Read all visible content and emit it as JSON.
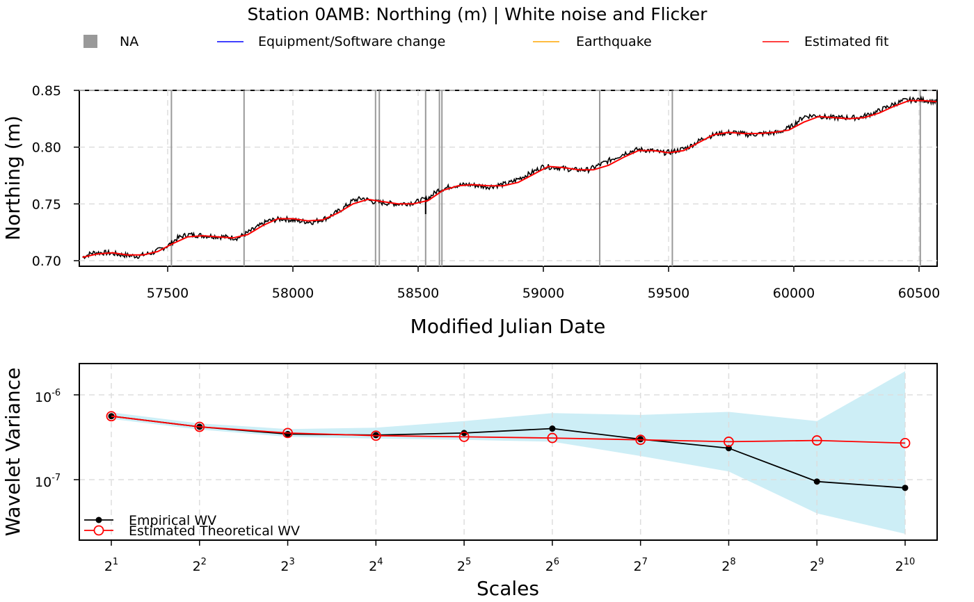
{
  "title": "Station 0AMB: Northing (m) | White noise and Flicker",
  "legend_top": [
    {
      "label": "NA",
      "color": "#999999",
      "symbol": "square"
    },
    {
      "label": "Equipment/Software change",
      "color": "#0000ff",
      "symbol": "line"
    },
    {
      "label": "Earthquake",
      "color": "#ffa500",
      "symbol": "line"
    },
    {
      "label": "Estimated fit",
      "color": "#ff0000",
      "symbol": "line"
    }
  ],
  "chart_data": [
    {
      "type": "line",
      "ylabel": "Northing (m)",
      "xlabel": "Modified Julian Date",
      "xlim": [
        57150,
        60575
      ],
      "ylim": [
        0.695,
        0.85
      ],
      "xticks": [
        57500,
        58000,
        58500,
        59000,
        59500,
        60000,
        60500
      ],
      "yticks": [
        0.7,
        0.75,
        0.8,
        0.85
      ],
      "ytick_labels": [
        "0.70",
        "0.75",
        "0.80",
        "0.85"
      ],
      "na_lines_mjd": [
        57515,
        57805,
        58330,
        58345,
        58530,
        58585,
        58595,
        59225,
        59515,
        60505
      ],
      "series_observed": {
        "color": "#000000",
        "x": [
          57160,
          57200,
          57260,
          57320,
          57380,
          57440,
          57500,
          57540,
          57580,
          57650,
          57720,
          57780,
          57830,
          57900,
          57960,
          58020,
          58080,
          58140,
          58200,
          58240,
          58280,
          58320,
          58360,
          58420,
          58480,
          58540,
          58580,
          58640,
          58700,
          58780,
          58860,
          58940,
          59000,
          59060,
          59120,
          59180,
          59230,
          59280,
          59330,
          59380,
          59430,
          59480,
          59520,
          59580,
          59640,
          59700,
          59760,
          59820,
          59880,
          59940,
          59990,
          60040,
          60090,
          60140,
          60200,
          60260,
          60320,
          60380,
          60440,
          60500,
          60570
        ],
        "y": [
          0.703,
          0.707,
          0.707,
          0.705,
          0.704,
          0.707,
          0.713,
          0.72,
          0.723,
          0.722,
          0.721,
          0.72,
          0.726,
          0.735,
          0.737,
          0.735,
          0.734,
          0.738,
          0.746,
          0.753,
          0.755,
          0.752,
          0.751,
          0.75,
          0.751,
          0.755,
          0.762,
          0.766,
          0.767,
          0.765,
          0.768,
          0.776,
          0.783,
          0.782,
          0.78,
          0.78,
          0.785,
          0.79,
          0.795,
          0.798,
          0.797,
          0.795,
          0.796,
          0.8,
          0.808,
          0.812,
          0.813,
          0.811,
          0.812,
          0.813,
          0.818,
          0.827,
          0.828,
          0.826,
          0.826,
          0.826,
          0.83,
          0.836,
          0.841,
          0.842,
          0.84
        ]
      },
      "series_fit": {
        "name": "Estimated fit",
        "color": "#ff0000",
        "x": [
          57160,
          57220,
          57280,
          57340,
          57400,
          57460,
          57520,
          57580,
          57640,
          57700,
          57760,
          57820,
          57880,
          57940,
          58000,
          58060,
          58120,
          58180,
          58240,
          58300,
          58360,
          58420,
          58480,
          58540,
          58600,
          58660,
          58720,
          58780,
          58840,
          58900,
          58960,
          59020,
          59080,
          59140,
          59200,
          59260,
          59320,
          59380,
          59440,
          59500,
          59560,
          59620,
          59680,
          59740,
          59800,
          59860,
          59920,
          59980,
          60040,
          60100,
          60160,
          60220,
          60280,
          60340,
          60400,
          60460,
          60520,
          60570
        ],
        "y": [
          0.703,
          0.706,
          0.707,
          0.705,
          0.705,
          0.708,
          0.715,
          0.721,
          0.722,
          0.721,
          0.72,
          0.723,
          0.731,
          0.737,
          0.737,
          0.735,
          0.736,
          0.742,
          0.75,
          0.754,
          0.752,
          0.75,
          0.75,
          0.753,
          0.762,
          0.766,
          0.767,
          0.766,
          0.766,
          0.769,
          0.776,
          0.783,
          0.782,
          0.78,
          0.78,
          0.784,
          0.791,
          0.797,
          0.797,
          0.795,
          0.797,
          0.804,
          0.811,
          0.813,
          0.812,
          0.812,
          0.813,
          0.815,
          0.822,
          0.827,
          0.826,
          0.825,
          0.826,
          0.83,
          0.836,
          0.841,
          0.841,
          0.84
        ]
      }
    },
    {
      "type": "line",
      "ylabel": "Wavelet Variance",
      "xlabel": "Scales",
      "x_scale": "log2",
      "y_scale": "log10",
      "x_exponents": [
        1,
        2,
        3,
        4,
        5,
        6,
        7,
        8,
        9,
        10
      ],
      "ylim": [
        2e-08,
        2.3e-06
      ],
      "yticks": [
        {
          "base": "10",
          "exp": "-6",
          "value": 1e-06
        },
        {
          "base": "10",
          "exp": "-7",
          "value": 1e-07
        }
      ],
      "ci_color": "#cdeef6",
      "ci_lower": [
        5.2e-07,
        3.9e-07,
        3.2e-07,
        3.05e-07,
        2.95e-07,
        2.8e-07,
        1.9e-07,
        1.25e-07,
        4e-08,
        2.3e-08
      ],
      "ci_upper": [
        6.2e-07,
        4.6e-07,
        3.95e-07,
        4.1e-07,
        4.9e-07,
        6.1e-07,
        5.8e-07,
        6.3e-07,
        4.9e-07,
        1.9e-06
      ],
      "series": [
        {
          "name": "Empirical WV",
          "color": "#000000",
          "marker": "filled-circle",
          "values": [
            5.6e-07,
            4.2e-07,
            3.45e-07,
            3.35e-07,
            3.55e-07,
            4e-07,
            3e-07,
            2.35e-07,
            9.5e-08,
            8e-08
          ]
        },
        {
          "name": "Estimated Theoretical WV",
          "color": "#ff0000",
          "marker": "open-circle",
          "values": [
            5.6e-07,
            4.2e-07,
            3.55e-07,
            3.3e-07,
            3.2e-07,
            3.1e-07,
            2.95e-07,
            2.8e-07,
            2.9e-07,
            2.7e-07
          ]
        }
      ]
    }
  ]
}
